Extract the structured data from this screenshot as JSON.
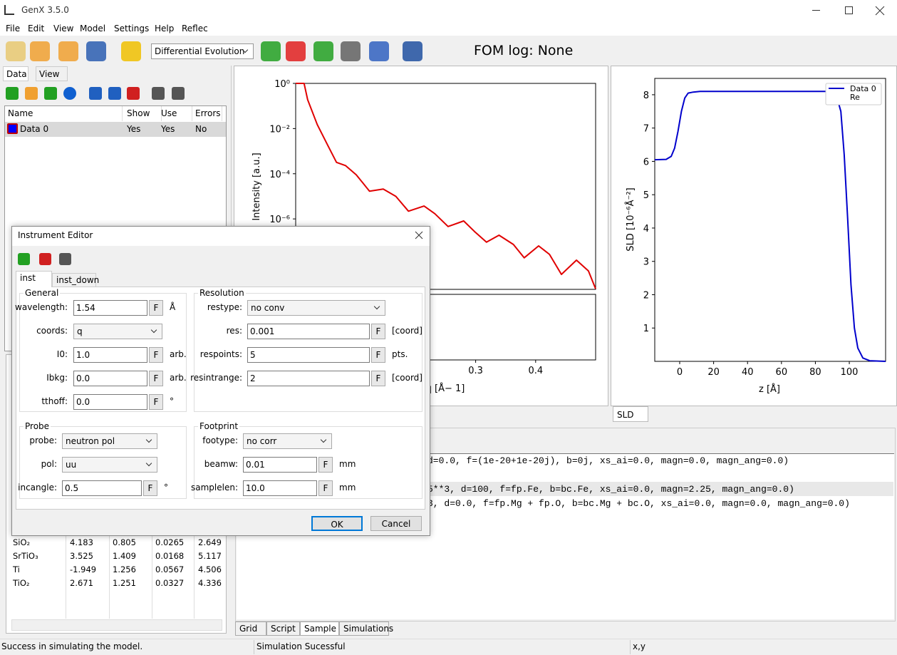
{
  "window": {
    "title": "GenX 3.5.0"
  },
  "menu": [
    "File",
    "Edit",
    "View",
    "Model",
    "Settings",
    "Help",
    "Reflec"
  ],
  "toolbar": {
    "algorithm": "Differential Evolution",
    "fom_log": "FOM log: None"
  },
  "data_panel": {
    "tabs": [
      "Data",
      "View"
    ],
    "columns": [
      "Name",
      "Show",
      "Use",
      "Errors"
    ],
    "rows": [
      [
        "Data 0",
        "Yes",
        "Yes",
        "No"
      ]
    ]
  },
  "reflectivity_plot": {
    "type": "line",
    "ylabel": "Intensity [a.u.]",
    "xlabel": "q [Å− 1]",
    "log_y": true,
    "xlim": [
      0,
      0.5
    ],
    "ylim": [
      7.6e-10,
      1
    ],
    "xticks": [
      0.3,
      0.4
    ],
    "yticks": [
      {
        "value": 1,
        "label": "10⁰"
      },
      {
        "value": 0.01,
        "label": "10⁻²"
      },
      {
        "value": 0.0001,
        "label": "10⁻⁴"
      },
      {
        "value": 1e-06,
        "label": "10⁻⁶"
      }
    ],
    "series": [
      {
        "color": "#e00000",
        "x": [
          0,
          0.014,
          0.02,
          0.036,
          0.054,
          0.068,
          0.083,
          0.101,
          0.123,
          0.146,
          0.167,
          0.188,
          0.214,
          0.232,
          0.254,
          0.28,
          0.298,
          0.318,
          0.339,
          0.363,
          0.381,
          0.405,
          0.423,
          0.443,
          0.468,
          0.488,
          0.5
        ],
        "values": [
          1,
          1,
          0.19,
          0.015,
          0.0017,
          0.00032,
          0.00023,
          9e-05,
          1.7e-05,
          2.1e-05,
          1e-05,
          2.2e-06,
          3.7e-06,
          1.7e-06,
          4.6e-07,
          8.1e-07,
          2.8e-07,
          9.3e-08,
          1.9e-07,
          7.4e-08,
          1.9e-08,
          6.4e-08,
          2.7e-08,
          3.5e-09,
          1.5e-08,
          5e-09,
          8e-10
        ]
      }
    ]
  },
  "sld_plot": {
    "type": "line",
    "ylabel": "SLD [10⁻⁶Å⁻²]",
    "xlabel": "z [Å]",
    "xlim": [
      -14.7,
      121.4
    ],
    "ylim": [
      0,
      8.49
    ],
    "xticks": [
      0,
      20,
      40,
      60,
      80,
      100
    ],
    "yticks": [
      1,
      2,
      3,
      4,
      5,
      6,
      7,
      8
    ],
    "series": [
      {
        "name": "Data 0",
        "color": "#0000cc",
        "x": [
          -14.7,
          -8,
          -5,
          -3,
          -1,
          1,
          3,
          5,
          8,
          12,
          88,
          92,
          95,
          97,
          99,
          101,
          103,
          105,
          108,
          112,
          121.4
        ],
        "values": [
          6.05,
          6.06,
          6.15,
          6.4,
          6.9,
          7.5,
          7.9,
          8.05,
          8.08,
          8.1,
          8.1,
          8.05,
          7.5,
          6.2,
          4.3,
          2.3,
          1.0,
          0.4,
          0.1,
          0.02,
          0
        ]
      },
      {
        "name": "Re",
        "color": "#ffffff",
        "x": [],
        "values": []
      }
    ]
  },
  "sld_tab": "SLD",
  "script_lines": [
    "d=0.0, f=(1e-20+1e-20j), b=0j, xs_ai=0.0, magn=0.0, magn_ang=0.0)",
    "5**3, d=100, f=fp.Fe, b=bc.Fe, xs_ai=0.0, magn=2.25, magn_ang=0.0)",
    "3, d=0.0, f=fp.Mg + fp.O, b=bc.Mg + bc.O, xs_ai=0.0, magn=0.0, magn_ang=0.0)"
  ],
  "materials": [
    [
      "SiO₂",
      4.183,
      0.805,
      0.0265,
      2.649
    ],
    [
      "SrTiO₃",
      3.525,
      1.409,
      0.0168,
      5.117
    ],
    [
      "Ti",
      -1.949,
      1.256,
      0.0567,
      4.506
    ],
    [
      "TiO₂",
      2.671,
      1.251,
      0.0327,
      4.336
    ]
  ],
  "bottom_tabs": [
    "Grid",
    "Script",
    "Sample",
    "Simulations"
  ],
  "status": [
    "Success in simulating the model.",
    "Simulation Sucessful",
    "x,y"
  ],
  "dialog": {
    "title": "Instrument Editor",
    "tabs": [
      "inst",
      "inst_down"
    ],
    "fit_label": "F",
    "general": {
      "title": "General",
      "fields": [
        {
          "label": "wavelength:",
          "control": "text",
          "value": "1.54",
          "unit": "Å"
        },
        {
          "label": "coords:",
          "control": "select",
          "value": "q"
        },
        {
          "label": "I0:",
          "control": "text",
          "value": "1.0",
          "unit": "arb."
        },
        {
          "label": "Ibkg:",
          "control": "text",
          "value": "0.0",
          "unit": "arb."
        },
        {
          "label": "tthoff:",
          "control": "text",
          "value": "0.0",
          "unit": "°"
        }
      ]
    },
    "resolution": {
      "title": "Resolution",
      "fields": [
        {
          "label": "restype:",
          "control": "select",
          "value": "no conv"
        },
        {
          "label": "res:",
          "control": "text",
          "value": "0.001",
          "unit": "[coord]"
        },
        {
          "label": "respoints:",
          "control": "text",
          "value": "5",
          "unit": "pts."
        },
        {
          "label": "resintrange:",
          "control": "text",
          "value": "2",
          "unit": "[coord]"
        }
      ]
    },
    "probe": {
      "title": "Probe",
      "fields": [
        {
          "label": "probe:",
          "control": "select",
          "value": "neutron pol"
        },
        {
          "label": "pol:",
          "control": "select",
          "value": "uu"
        },
        {
          "label": "incangle:",
          "control": "text",
          "value": "0.5",
          "unit": "°"
        }
      ]
    },
    "footprint": {
      "title": "Footprint",
      "fields": [
        {
          "label": "footype:",
          "control": "select",
          "value": "no corr"
        },
        {
          "label": "beamw:",
          "control": "text",
          "value": "0.01",
          "unit": "mm"
        },
        {
          "label": "samplelen:",
          "control": "text",
          "value": "10.0",
          "unit": "mm"
        }
      ]
    },
    "buttons": [
      "OK",
      "Cancel"
    ]
  }
}
